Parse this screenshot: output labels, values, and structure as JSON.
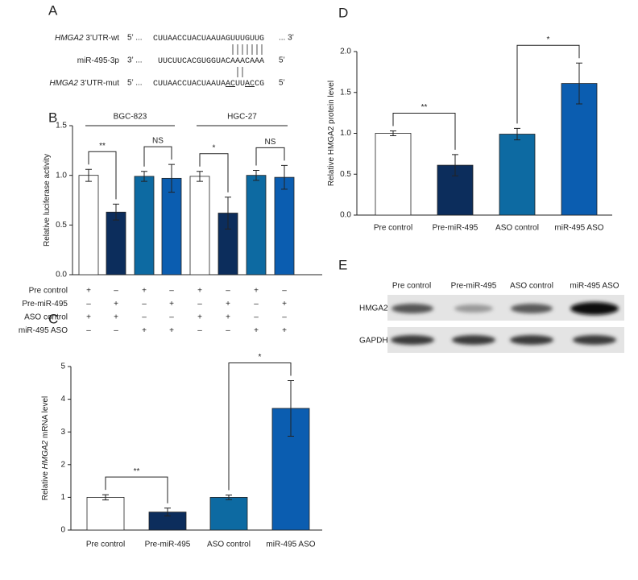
{
  "panel_a": {
    "letter": "A",
    "rows": [
      {
        "gene": "HMGA2",
        "label": "3’UTR-wt",
        "left": "5’ ...",
        "sequence": [
          {
            "text": "CUUAACCUACUAAUAGUUUGUUG"
          }
        ],
        "right": "... 3’"
      },
      {
        "label": "miR-495-3p",
        "left": "3’ ...",
        "sequence": [
          {
            "text": "UUCUUCACGUGGUACAAACAAA"
          }
        ],
        "right": "5’"
      },
      {
        "gene": "HMGA2",
        "label": "3’UTR-mut",
        "left": "5’ ...",
        "sequence": [
          {
            "text": "CUUAACCUACUAAUA"
          },
          {
            "text": "AC",
            "underline": true
          },
          {
            "text": "UU"
          },
          {
            "text": "AC",
            "underline": true
          },
          {
            "text": "CG"
          }
        ],
        "right": "5’"
      }
    ]
  },
  "panel_e": {
    "letter": "E",
    "columns": [
      "Pre control",
      "Pre-miR-495",
      "ASO control",
      "miR-495 ASO"
    ],
    "rows": [
      "HMGA2",
      "GAPDH"
    ]
  },
  "chart_data": [
    {
      "type": "bar",
      "letter": "B",
      "ylabel": [
        {
          "text": "Relative luciferase activity"
        }
      ],
      "values": [
        1.0,
        0.63,
        0.99,
        0.97,
        0.99,
        0.62,
        1.0,
        0.98
      ],
      "errors": [
        0.06,
        0.08,
        0.05,
        0.14,
        0.05,
        0.16,
        0.05,
        0.12
      ],
      "colors": [
        "#ffffff",
        "#0c2d5c",
        "#0d6aa2",
        "#0b5db0",
        "#ffffff",
        "#0c2d5c",
        "#0d6aa2",
        "#0b5db0"
      ],
      "ylim": [
        0,
        1.5
      ],
      "yticks": [
        {
          "value": 0,
          "label": "0.0"
        },
        0.5,
        {
          "value": 1,
          "label": "1.0"
        },
        1.5
      ],
      "groups": [
        "BGC-823",
        "HGC-27"
      ],
      "annotations": [
        {
          "text": "**",
          "bars": [
            0,
            1
          ]
        },
        {
          "text": "NS",
          "bars": [
            2,
            3
          ]
        },
        {
          "text": "*",
          "bars": [
            4,
            5
          ]
        },
        {
          "text": "NS",
          "bars": [
            6,
            7
          ]
        }
      ],
      "conditions": [
        {
          "label": "Pre control",
          "signs": [
            "+",
            "–",
            "+",
            "–",
            "+",
            "–",
            "+",
            "–"
          ]
        },
        {
          "label": "Pre-miR-495",
          "signs": [
            "–",
            "+",
            "–",
            "+",
            "–",
            "+",
            "–",
            "+"
          ]
        },
        {
          "label": "ASO control",
          "signs": [
            "+",
            "+",
            "–",
            "–",
            "+",
            "+",
            "–",
            "–"
          ]
        },
        {
          "label": "miR-495 ASO",
          "signs": [
            "–",
            "–",
            "+",
            "+",
            "–",
            "–",
            "+",
            "+"
          ]
        }
      ]
    },
    {
      "type": "bar",
      "letter": "C",
      "ylabel": [
        {
          "text": "Relative "
        },
        {
          "text": "HMGA2",
          "italic": true
        },
        {
          "text": " mRNA level"
        }
      ],
      "categories": [
        "Pre control",
        "Pre-miR-495",
        "ASO control",
        "miR-495 ASO"
      ],
      "values": [
        1.0,
        0.55,
        1.0,
        3.72
      ],
      "errors": [
        0.08,
        0.12,
        0.07,
        0.85
      ],
      "colors": [
        "#ffffff",
        "#0c2d5c",
        "#0d6aa2",
        "#0b5db0"
      ],
      "ylim": [
        0,
        5
      ],
      "yticks": [
        0,
        1,
        2,
        3,
        4,
        5
      ],
      "annotations": [
        {
          "text": "**",
          "bars": [
            0,
            1
          ]
        },
        {
          "text": "*",
          "bars": [
            2,
            3
          ]
        }
      ]
    },
    {
      "type": "bar",
      "letter": "D",
      "ylabel": [
        {
          "text": "Relative HMGA2 protein level"
        }
      ],
      "categories": [
        "Pre control",
        "Pre-miR-495",
        "ASO control",
        "miR-495 ASO"
      ],
      "values": [
        1.0,
        0.61,
        0.99,
        1.61
      ],
      "errors": [
        0.03,
        0.13,
        0.07,
        0.25
      ],
      "colors": [
        "#ffffff",
        "#0c2d5c",
        "#0d6aa2",
        "#0b5db0"
      ],
      "ylim": [
        0,
        2
      ],
      "yticks": [
        {
          "value": 0,
          "label": "0.0"
        },
        0.5,
        {
          "value": 1,
          "label": "1.0"
        },
        1.5,
        {
          "value": 2,
          "label": "2.0"
        }
      ],
      "annotations": [
        {
          "text": "**",
          "bars": [
            0,
            1
          ]
        },
        {
          "text": "*",
          "bars": [
            2,
            3
          ]
        }
      ]
    }
  ]
}
